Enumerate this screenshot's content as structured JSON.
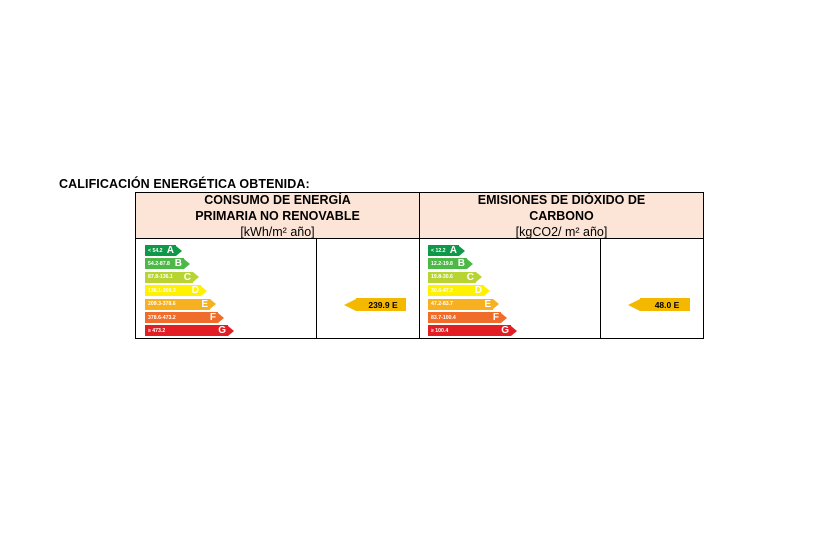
{
  "heading": "CALIFICACIÓN ENERGÉTICA OBTENIDA:",
  "consumption": {
    "title_line1": "CONSUMO DE ENERGÍA",
    "title_line2": "PRIMARIA NO RENOVABLE",
    "unit": "[kWh/m² año]",
    "result_label": "239.9 E",
    "result_value": 239.9,
    "result_class": "E",
    "classes": [
      {
        "range": "< 54.2",
        "letter": "A",
        "color": "#0e9848"
      },
      {
        "range": "54.2-87.8",
        "letter": "B",
        "color": "#4db847"
      },
      {
        "range": "87.8-136.1",
        "letter": "C",
        "color": "#b7d433"
      },
      {
        "range": "136.1-209.3",
        "letter": "D",
        "color": "#fff200"
      },
      {
        "range": "209.3-378.6",
        "letter": "E",
        "color": "#f7b020"
      },
      {
        "range": "378.6-473.2",
        "letter": "F",
        "color": "#ef6c2b"
      },
      {
        "range": "≥ 473.2",
        "letter": "G",
        "color": "#e21d24"
      }
    ]
  },
  "emissions": {
    "title_line1": "EMISIONES DE DIÓXIDO DE",
    "title_line2": "CARBONO",
    "unit": "[kgCO2/ m² año]",
    "result_label": "48.0 E",
    "result_value": 48.0,
    "result_class": "E",
    "classes": [
      {
        "range": "< 12.2",
        "letter": "A",
        "color": "#0e9848"
      },
      {
        "range": "12.2-19.8",
        "letter": "B",
        "color": "#4db847"
      },
      {
        "range": "19.8-30.6",
        "letter": "C",
        "color": "#b7d433"
      },
      {
        "range": "30.6-47.2",
        "letter": "D",
        "color": "#fff200"
      },
      {
        "range": "47.2-83.7",
        "letter": "E",
        "color": "#f7b020"
      },
      {
        "range": "83.7-100.4",
        "letter": "F",
        "color": "#ef6c2b"
      },
      {
        "range": "≥ 100.4",
        "letter": "G",
        "color": "#e21d24"
      }
    ]
  },
  "result_color": "#f5b800"
}
